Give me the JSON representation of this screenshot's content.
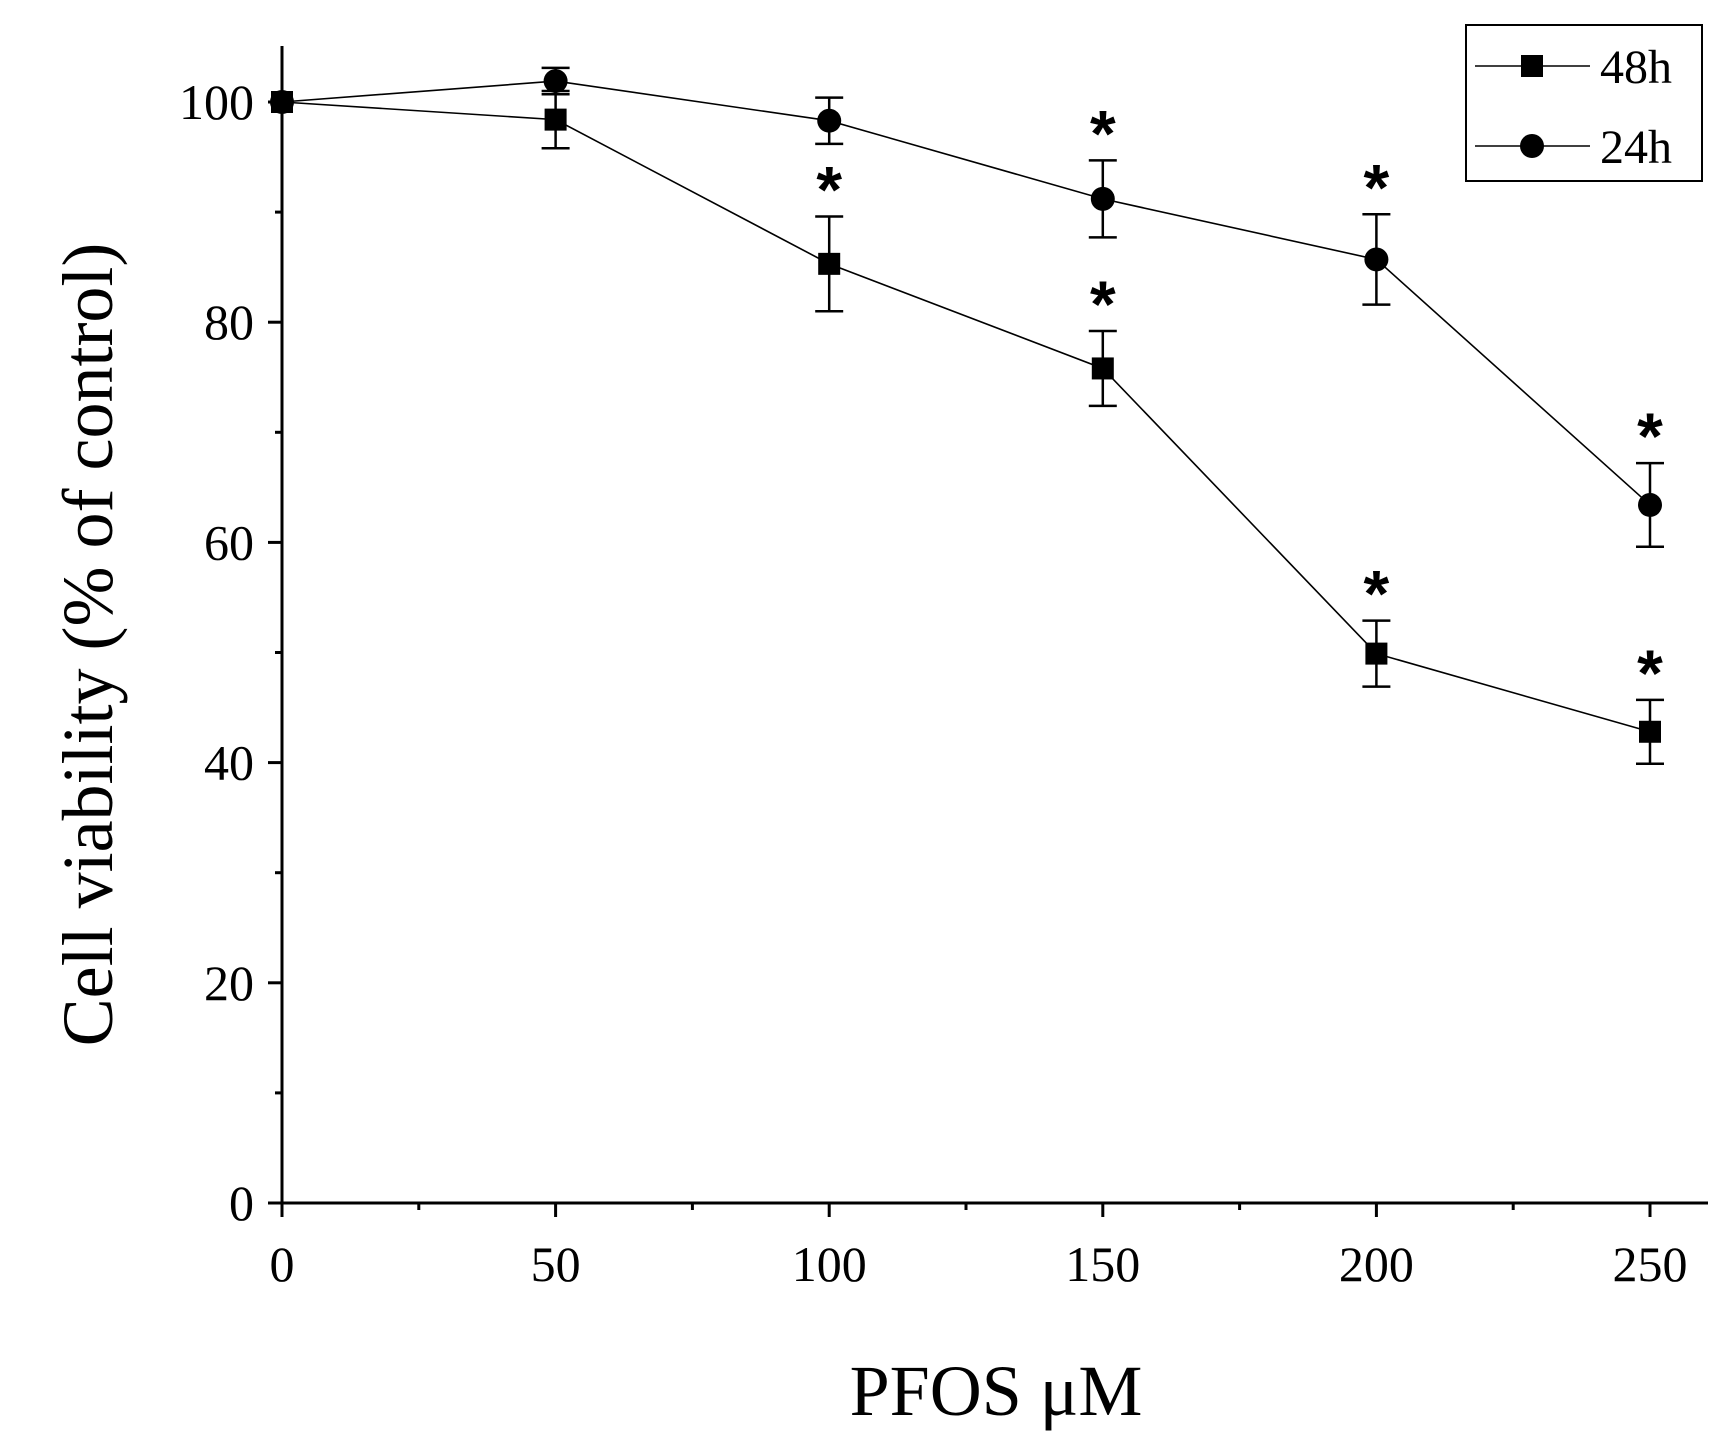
{
  "chart_data": {
    "type": "line",
    "title": "",
    "xlabel": "PFOS μM",
    "ylabel": "Cell viability (% of control)",
    "xlim": [
      0,
      260
    ],
    "ylim": [
      0,
      105
    ],
    "x_ticks": [
      0,
      50,
      100,
      150,
      200,
      250
    ],
    "x_tick_labels": [
      "0",
      "50",
      "100",
      "150",
      "200",
      "250"
    ],
    "y_ticks": [
      0,
      20,
      40,
      60,
      80,
      100
    ],
    "y_tick_labels": [
      "0",
      "20",
      "40",
      "60",
      "80",
      "100"
    ],
    "legend_position": "top-right",
    "significance_marker": "*",
    "series": [
      {
        "name": "48h",
        "marker": "square",
        "x": [
          0,
          50,
          100,
          150,
          200,
          250
        ],
        "values": [
          100,
          98.4,
          85.3,
          75.8,
          49.9,
          42.8
        ],
        "errors": [
          0,
          2.6,
          4.3,
          3.4,
          3.0,
          2.9
        ],
        "significant": [
          false,
          false,
          true,
          true,
          true,
          true
        ]
      },
      {
        "name": "24h",
        "marker": "circle",
        "x": [
          0,
          50,
          100,
          150,
          200,
          250
        ],
        "values": [
          100,
          101.9,
          98.3,
          91.2,
          85.7,
          63.4
        ],
        "errors": [
          0,
          1.2,
          2.1,
          3.5,
          4.1,
          3.8
        ],
        "significant": [
          false,
          false,
          false,
          true,
          true,
          true
        ]
      }
    ]
  }
}
